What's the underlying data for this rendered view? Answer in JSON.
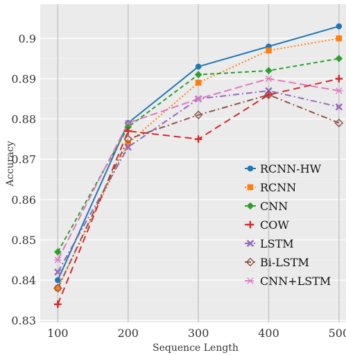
{
  "chart_data": {
    "type": "line",
    "title": "",
    "xlabel": "Sequence Length",
    "ylabel": "Accuracy",
    "x": [
      100,
      200,
      300,
      400,
      500
    ],
    "x_ticks": [
      "100",
      "200",
      "300",
      "400",
      "500"
    ],
    "y_ticks": [
      "0.83",
      "0.84",
      "0.85",
      "0.86",
      "0.87",
      "0.88",
      "0.89",
      "0.9"
    ],
    "xlim": [
      75,
      510
    ],
    "ylim": [
      0.8295,
      0.9085
    ],
    "grid": true,
    "legend_position": "right",
    "series": [
      {
        "name": "RCNN-HW",
        "values": [
          0.84,
          0.879,
          0.893,
          0.898,
          0.903
        ],
        "color": "#1f77b4",
        "marker": "circle",
        "dash": "solid"
      },
      {
        "name": "RCNN",
        "values": [
          0.838,
          0.874,
          0.889,
          0.897,
          0.9
        ],
        "color": "#ff7f0e",
        "marker": "square",
        "dash": "dotted"
      },
      {
        "name": "CNN",
        "values": [
          0.847,
          0.878,
          0.891,
          0.892,
          0.895
        ],
        "color": "#2ca02c",
        "marker": "diamond",
        "dash": "dashed"
      },
      {
        "name": "COW",
        "values": [
          0.834,
          0.877,
          0.875,
          0.886,
          0.89
        ],
        "color": "#d62728",
        "marker": "plus",
        "dash": "longdash"
      },
      {
        "name": "LSTM",
        "values": [
          0.842,
          0.873,
          0.885,
          0.887,
          0.883
        ],
        "color": "#9467bd",
        "marker": "x",
        "dash": "dashdot"
      },
      {
        "name": "Bi-LSTM",
        "values": [
          0.838,
          0.875,
          0.881,
          0.886,
          0.879
        ],
        "color": "#8c564b",
        "marker": "diamond-open",
        "dash": "dashdot2"
      },
      {
        "name": "CNN+LSTM",
        "values": [
          0.845,
          0.879,
          0.885,
          0.89,
          0.887
        ],
        "color": "#e377c2",
        "marker": "asterisk",
        "dash": "longdash2"
      }
    ]
  }
}
